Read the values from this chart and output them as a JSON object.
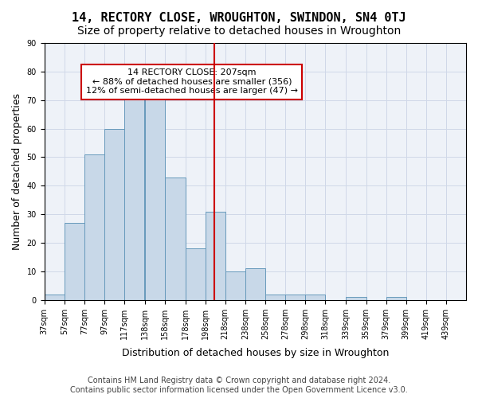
{
  "title": "14, RECTORY CLOSE, WROUGHTON, SWINDON, SN4 0TJ",
  "subtitle": "Size of property relative to detached houses in Wroughton",
  "xlabel": "Distribution of detached houses by size in Wroughton",
  "ylabel": "Number of detached properties",
  "bin_labels": [
    "37sqm",
    "57sqm",
    "77sqm",
    "97sqm",
    "117sqm",
    "138sqm",
    "158sqm",
    "178sqm",
    "198sqm",
    "218sqm",
    "238sqm",
    "258sqm",
    "278sqm",
    "298sqm",
    "318sqm",
    "339sqm",
    "359sqm",
    "379sqm",
    "399sqm",
    "419sqm",
    "439sqm"
  ],
  "bin_edges": [
    37,
    57,
    77,
    97,
    117,
    138,
    158,
    178,
    198,
    218,
    238,
    258,
    278,
    298,
    318,
    339,
    359,
    379,
    399,
    419,
    439
  ],
  "bar_heights": [
    2,
    27,
    51,
    60,
    71,
    72,
    43,
    18,
    31,
    10,
    11,
    2,
    2,
    2,
    0,
    1,
    0,
    1,
    0,
    0
  ],
  "bar_color": "#c8d8e8",
  "bar_edge_color": "#6699bb",
  "vline_x": 207,
  "vline_color": "#cc0000",
  "annotation_text": "14 RECTORY CLOSE: 207sqm\n← 88% of detached houses are smaller (356)\n12% of semi-detached houses are larger (47) →",
  "annotation_box_color": "#ffffff",
  "annotation_box_edge_color": "#cc0000",
  "grid_color": "#d0d8e8",
  "background_color": "#eef2f8",
  "ylim": [
    0,
    90
  ],
  "yticks": [
    0,
    10,
    20,
    30,
    40,
    50,
    60,
    70,
    80,
    90
  ],
  "footer_line1": "Contains HM Land Registry data © Crown copyright and database right 2024.",
  "footer_line2": "Contains public sector information licensed under the Open Government Licence v3.0.",
  "title_fontsize": 11,
  "subtitle_fontsize": 10,
  "xlabel_fontsize": 9,
  "ylabel_fontsize": 9,
  "tick_fontsize": 7,
  "annotation_fontsize": 8,
  "footer_fontsize": 7
}
